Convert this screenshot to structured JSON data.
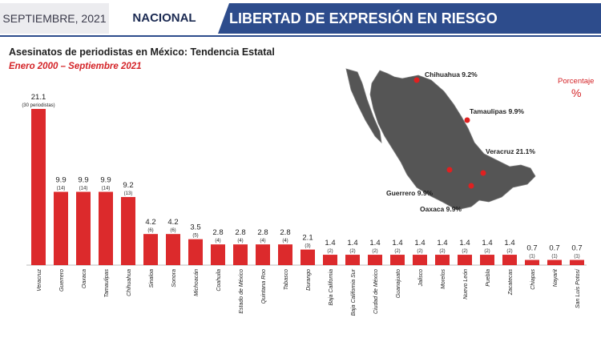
{
  "header": {
    "date": "SEPTIEMBRE, 2021",
    "section": "NACIONAL",
    "banner": "LIBERTAD DE EXPRESIÓN EN RIESGO"
  },
  "legend": {
    "label": "Porcentaje",
    "symbol": "%"
  },
  "map": {
    "labels": {
      "chihuahua": "Chihuahua 9.2%",
      "tamaulipas": "Tamaulipas 9.9%",
      "veracruz": "Veracruz 21.1%",
      "guerrero": "Guerrero 9.9%",
      "oaxaca": "Oaxaca 9.9%"
    }
  },
  "colors": {
    "bar": "#dc2a2c",
    "accent": "#d42428",
    "header": "#2d4c8c",
    "map": "#555555"
  },
  "chart_data": {
    "type": "bar",
    "title": "Asesinatos de periodistas en México: Tendencia Estatal",
    "subtitle": "Enero 2000 – Septiembre 2021",
    "categories": [
      "Veracruz",
      "Guerrero",
      "Oaxaca",
      "Tamaulipas",
      "Chihuahua",
      "Sinaloa",
      "Sonora",
      "Michoacán",
      "Coahuila",
      "Estado de México",
      "Quintana Roo",
      "Tabasco",
      "Durango",
      "Baja California",
      "Baja California Sur",
      "Ciudad de México",
      "Guanajuato",
      "Jalisco",
      "Morelos",
      "Nuevo León",
      "Puebla",
      "Zacatecas",
      "Chiapas",
      "Nayarit",
      "San Luis Potosí"
    ],
    "values": [
      21.1,
      9.9,
      9.9,
      9.9,
      9.2,
      4.2,
      4.2,
      3.5,
      2.8,
      2.8,
      2.8,
      2.8,
      2.1,
      1.4,
      1.4,
      1.4,
      1.4,
      1.4,
      1.4,
      1.4,
      1.4,
      1.4,
      0.7,
      0.7,
      0.7
    ],
    "value_labels": [
      "21.1",
      "9.9",
      "9.9",
      "9.9",
      "9.2",
      "4.2",
      "4.2",
      "3.5",
      "2.8",
      "2.8",
      "2.8",
      "2.8",
      "2.1",
      "1.4",
      "1.4",
      "1.4",
      "1.4",
      "1.4",
      "1.4",
      "1.4",
      "1.4",
      "1.4",
      "0.7",
      "0.7",
      "0.7"
    ],
    "count_labels": [
      "(30 periodistas)",
      "(14)",
      "(14)",
      "(14)",
      "(13)",
      "(6)",
      "(6)",
      "(5)",
      "(4)",
      "(4)",
      "(4)",
      "(4)",
      "(3)",
      "(2)",
      "(2)",
      "(2)",
      "(2)",
      "(2)",
      "(2)",
      "(2)",
      "(2)",
      "(2)",
      "(1)",
      "(1)",
      "(1)"
    ],
    "xlabel": "",
    "ylabel": "",
    "ylim": [
      0,
      21.1
    ],
    "grid": false,
    "legend_position": "top-right"
  }
}
